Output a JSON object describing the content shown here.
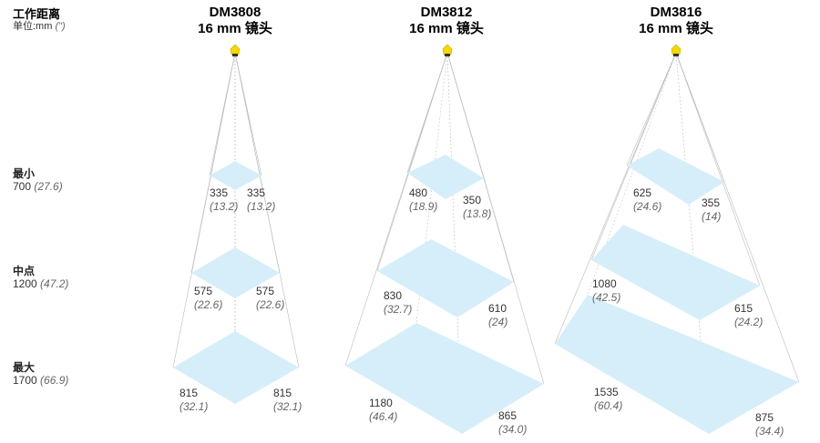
{
  "header": {
    "title": "工作距离",
    "units_prefix": "单位:mm ",
    "units_inch": "(\")"
  },
  "rows": [
    {
      "name": "最小",
      "mm": "700",
      "in": "(27.6)"
    },
    {
      "name": "中点",
      "mm": "1200",
      "in": "(47.2)"
    },
    {
      "name": "最大",
      "mm": "1700",
      "in": "(66.9)"
    }
  ],
  "models": [
    {
      "name": "DM3808",
      "lens": "16 mm 镜头",
      "levels": [
        {
          "w_mm": "335",
          "w_in": "(13.2)",
          "h_mm": "335",
          "h_in": "(13.2)"
        },
        {
          "w_mm": "575",
          "w_in": "(22.6)",
          "h_mm": "575",
          "h_in": "(22.6)"
        },
        {
          "w_mm": "815",
          "w_in": "(32.1)",
          "h_mm": "815",
          "h_in": "(32.1)"
        }
      ]
    },
    {
      "name": "DM3812",
      "lens": "16 mm 镜头",
      "levels": [
        {
          "w_mm": "480",
          "w_in": "(18.9)",
          "h_mm": "350",
          "h_in": "(13.8)"
        },
        {
          "w_mm": "830",
          "w_in": "(32.7)",
          "h_mm": "610",
          "h_in": "(24)"
        },
        {
          "w_mm": "1180",
          "w_in": "(46.4)",
          "h_mm": "865",
          "h_in": "(34.0)"
        }
      ]
    },
    {
      "name": "DM3816",
      "lens": "16 mm 镜头",
      "levels": [
        {
          "w_mm": "625",
          "w_in": "(24.6)",
          "h_mm": "355",
          "h_in": "(14)"
        },
        {
          "w_mm": "1080",
          "w_in": "(42.5)",
          "h_mm": "615",
          "h_in": "(24.2)"
        },
        {
          "w_mm": "1535",
          "w_in": "(60.4)",
          "h_mm": "875",
          "h_in": "(34.4)"
        }
      ]
    }
  ],
  "colors": {
    "field": "#d6eef9",
    "line": "#bbbbbb",
    "camera": "#f4d900"
  }
}
